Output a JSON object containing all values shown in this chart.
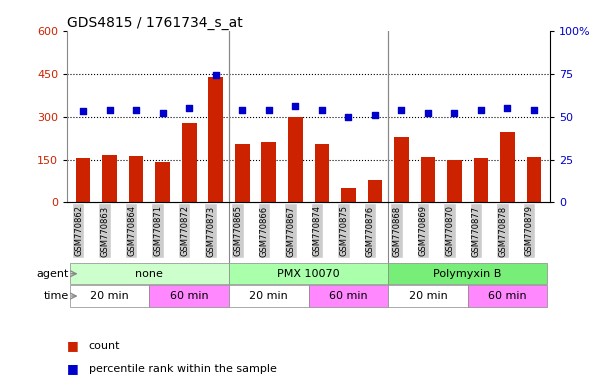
{
  "title": "GDS4815 / 1761734_s_at",
  "samples": [
    "GSM770862",
    "GSM770863",
    "GSM770864",
    "GSM770871",
    "GSM770872",
    "GSM770873",
    "GSM770865",
    "GSM770866",
    "GSM770867",
    "GSM770874",
    "GSM770875",
    "GSM770876",
    "GSM770868",
    "GSM770869",
    "GSM770870",
    "GSM770877",
    "GSM770878",
    "GSM770879"
  ],
  "counts": [
    155,
    165,
    162,
    143,
    278,
    440,
    205,
    210,
    300,
    205,
    52,
    80,
    230,
    158,
    148,
    155,
    245,
    160
  ],
  "percentiles": [
    53,
    54,
    54,
    52,
    55,
    74,
    54,
    54,
    56,
    54,
    50,
    51,
    54,
    52,
    52,
    54,
    55,
    54
  ],
  "bar_color": "#cc2200",
  "dot_color": "#0000cc",
  "ylim_left": [
    0,
    600
  ],
  "ylim_right": [
    0,
    100
  ],
  "yticks_left": [
    0,
    150,
    300,
    450,
    600
  ],
  "yticks_right": [
    0,
    25,
    50,
    75,
    100
  ],
  "hline_values": [
    150,
    300,
    450
  ],
  "group_sep": [
    5.5,
    11.5
  ],
  "agent_groups": [
    {
      "label": "none",
      "start": 0,
      "end": 6,
      "color": "#ccffcc"
    },
    {
      "label": "PMX 10070",
      "start": 6,
      "end": 12,
      "color": "#aaffaa"
    },
    {
      "label": "Polymyxin B",
      "start": 12,
      "end": 18,
      "color": "#77ee77"
    }
  ],
  "time_groups": [
    {
      "label": "20 min",
      "start": 0,
      "end": 3,
      "color": "#ffffff"
    },
    {
      "label": "60 min",
      "start": 3,
      "end": 6,
      "color": "#ff88ff"
    },
    {
      "label": "20 min",
      "start": 6,
      "end": 9,
      "color": "#ffffff"
    },
    {
      "label": "60 min",
      "start": 9,
      "end": 12,
      "color": "#ff88ff"
    },
    {
      "label": "20 min",
      "start": 12,
      "end": 15,
      "color": "#ffffff"
    },
    {
      "label": "60 min",
      "start": 15,
      "end": 18,
      "color": "#ff88ff"
    }
  ],
  "legend_count_label": "count",
  "legend_pct_label": "percentile rank within the sample",
  "agent_label": "agent",
  "time_label": "time",
  "background_color": "#ffffff",
  "tick_label_bg": "#cccccc",
  "bar_width": 0.55
}
